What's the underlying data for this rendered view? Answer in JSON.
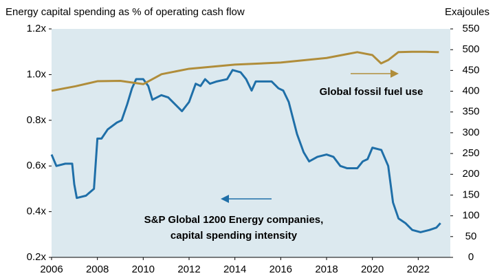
{
  "chart_data": {
    "type": "line",
    "y_label": "Energy capital spending as % of operating cash flow",
    "y2_label": "Exajoules",
    "xlim": [
      2006,
      2023.4
    ],
    "xticks": [
      2006,
      2008,
      2010,
      2012,
      2014,
      2016,
      2018,
      2020,
      2022
    ],
    "ylim": [
      0.2,
      1.2
    ],
    "yticks": [
      {
        "value": 0.2,
        "label": "0.2x"
      },
      {
        "value": 0.4,
        "label": "0.4x"
      },
      {
        "value": 0.6,
        "label": "0.6x"
      },
      {
        "value": 0.8,
        "label": "0.8x"
      },
      {
        "value": 1.0,
        "label": "1.0x"
      },
      {
        "value": 1.2,
        "label": "1.2x"
      }
    ],
    "y2lim": [
      0,
      550
    ],
    "y2ticks": [
      0,
      50,
      100,
      150,
      200,
      250,
      300,
      350,
      400,
      450,
      500,
      550
    ],
    "background": "#dce9ef",
    "annotations": [
      "Global fossil fuel use",
      "S&P Global 1200 Energy companies,",
      "capital spending intensity"
    ],
    "series": [
      {
        "name": "S&P Global 1200 Energy companies, capital spending intensity",
        "color": "#1f6fa8",
        "axis": "y",
        "x": [
          2006,
          2006.21,
          2006.6,
          2006.75,
          2006.9,
          2006.99,
          2007.1,
          2007.5,
          2007.85,
          2008,
          2008.18,
          2008.45,
          2008.85,
          2009.06,
          2009.3,
          2009.51,
          2009.69,
          2010,
          2010.22,
          2010.4,
          2010.79,
          2011.09,
          2011.39,
          2011.69,
          2012,
          2012.29,
          2012.5,
          2012.7,
          2012.91,
          2013.21,
          2013.66,
          2013.9,
          2014.25,
          2014.49,
          2014.73,
          2014.91,
          2015.3,
          2015.6,
          2015.9,
          2016.11,
          2016.35,
          2016.71,
          2017.0,
          2017.24,
          2017.6,
          2018,
          2018.3,
          2018.6,
          2018.9,
          2019.34,
          2019.58,
          2019.79,
          2020,
          2020.39,
          2020.69,
          2020.9,
          2021.14,
          2021.44,
          2021.74,
          2022.1,
          2022.49,
          2022.79,
          2022.97
        ],
        "values": [
          0.65,
          0.6,
          0.61,
          0.61,
          0.61,
          0.52,
          0.46,
          0.47,
          0.5,
          0.72,
          0.72,
          0.76,
          0.79,
          0.8,
          0.87,
          0.94,
          0.98,
          0.98,
          0.95,
          0.89,
          0.91,
          0.9,
          0.87,
          0.84,
          0.88,
          0.96,
          0.95,
          0.98,
          0.96,
          0.97,
          0.98,
          1.02,
          1.01,
          0.98,
          0.93,
          0.97,
          0.97,
          0.97,
          0.94,
          0.93,
          0.88,
          0.74,
          0.66,
          0.62,
          0.64,
          0.65,
          0.64,
          0.6,
          0.59,
          0.59,
          0.62,
          0.63,
          0.68,
          0.67,
          0.6,
          0.44,
          0.37,
          0.35,
          0.32,
          0.31,
          0.32,
          0.33,
          0.35
        ]
      },
      {
        "name": "Global fossil fuel use",
        "color": "#b08d3a",
        "axis": "y2",
        "x": [
          2006,
          2007.05,
          2008,
          2009,
          2010,
          2010.8,
          2012,
          2014,
          2016,
          2018,
          2019.34,
          2020,
          2020.38,
          2020.69,
          2021.13,
          2021.73,
          2022.33,
          2022.9
        ],
        "values": [
          401,
          412,
          424,
          425,
          417,
          441,
          454,
          464,
          469,
          480,
          494,
          487,
          467,
          475,
          494,
          495,
          495,
          494
        ]
      }
    ]
  }
}
